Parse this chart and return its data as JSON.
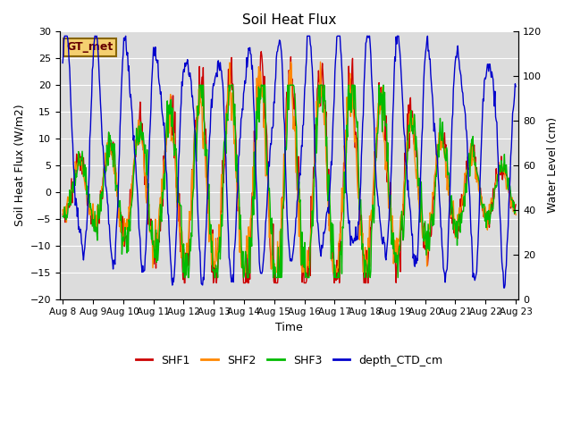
{
  "title": "Soil Heat Flux",
  "ylabel_left": "Soil Heat Flux (W/m2)",
  "ylabel_right": "Water Level (cm)",
  "xlabel": "Time",
  "annotation": "GT_met",
  "ylim_left": [
    -20,
    30
  ],
  "ylim_right": [
    0,
    120
  ],
  "x_ticks": [
    "Aug 8",
    "Aug 9",
    "Aug 10",
    "Aug 11",
    "Aug 12",
    "Aug 13",
    "Aug 14",
    "Aug 15",
    "Aug 16",
    "Aug 17",
    "Aug 18",
    "Aug 19",
    "Aug 20",
    "Aug 21",
    "Aug 22",
    "Aug 23"
  ],
  "colors": {
    "SHF1": "#cc0000",
    "SHF2": "#ff8800",
    "SHF3": "#00bb00",
    "depth_CTD_cm": "#0000cc"
  },
  "background_color": "#dcdcdc",
  "grid_color": "#ffffff",
  "annotation_facecolor": "#f5d070",
  "annotation_edgecolor": "#886600",
  "annotation_textcolor": "#660000"
}
